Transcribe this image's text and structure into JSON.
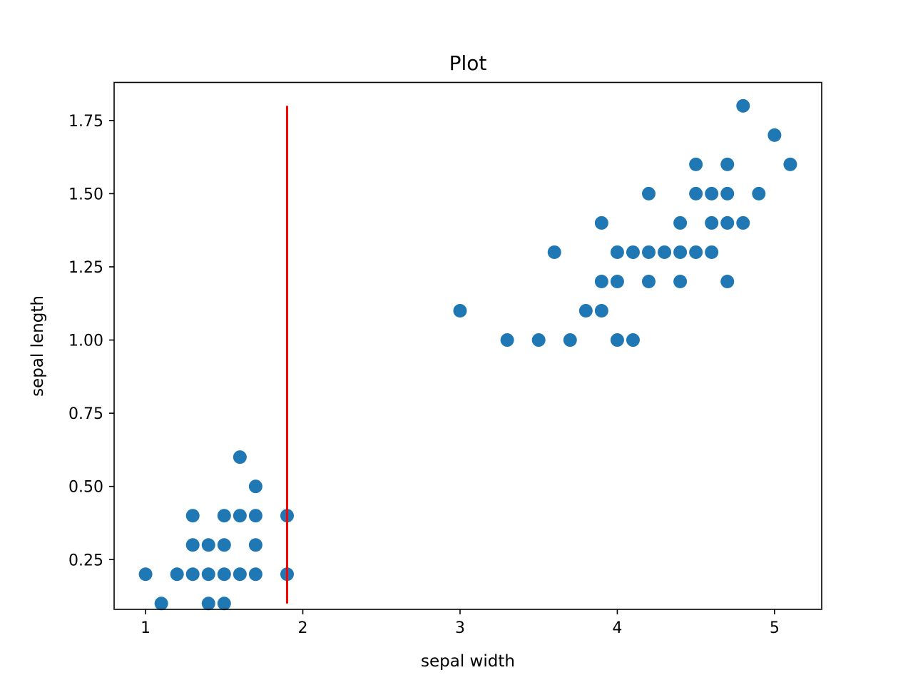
{
  "chart_data": {
    "type": "scatter",
    "title": "Plot",
    "xlabel": "sepal width",
    "ylabel": "sepal length",
    "xlim": [
      0.8,
      5.3
    ],
    "ylim": [
      0.08,
      1.88
    ],
    "xticks": [
      1,
      2,
      3,
      4,
      5
    ],
    "xtick_labels": [
      "1",
      "2",
      "3",
      "4",
      "5"
    ],
    "yticks": [
      0.25,
      0.5,
      0.75,
      1.0,
      1.25,
      1.5,
      1.75
    ],
    "ytick_labels": [
      "0.25",
      "0.50",
      "0.75",
      "1.00",
      "1.25",
      "1.50",
      "1.75"
    ],
    "grid": false,
    "point_color": "#1f77b4",
    "line_color": "#ff0000",
    "vertical_line": {
      "x": 1.9,
      "y_start": 0.1,
      "y_end": 1.8
    },
    "points": [
      [
        1.0,
        0.2
      ],
      [
        1.1,
        0.1
      ],
      [
        1.2,
        0.2
      ],
      [
        1.3,
        0.2
      ],
      [
        1.3,
        0.3
      ],
      [
        1.3,
        0.4
      ],
      [
        1.4,
        0.1
      ],
      [
        1.4,
        0.2
      ],
      [
        1.4,
        0.3
      ],
      [
        1.5,
        0.1
      ],
      [
        1.5,
        0.2
      ],
      [
        1.5,
        0.3
      ],
      [
        1.5,
        0.4
      ],
      [
        1.6,
        0.2
      ],
      [
        1.6,
        0.4
      ],
      [
        1.6,
        0.6
      ],
      [
        1.7,
        0.2
      ],
      [
        1.7,
        0.3
      ],
      [
        1.7,
        0.4
      ],
      [
        1.7,
        0.5
      ],
      [
        1.9,
        0.2
      ],
      [
        1.9,
        0.4
      ],
      [
        3.0,
        1.1
      ],
      [
        3.3,
        1.0
      ],
      [
        3.5,
        1.0
      ],
      [
        3.6,
        1.3
      ],
      [
        3.7,
        1.0
      ],
      [
        3.8,
        1.1
      ],
      [
        3.9,
        1.1
      ],
      [
        3.9,
        1.2
      ],
      [
        3.9,
        1.4
      ],
      [
        4.0,
        1.0
      ],
      [
        4.0,
        1.2
      ],
      [
        4.0,
        1.3
      ],
      [
        4.1,
        1.0
      ],
      [
        4.1,
        1.3
      ],
      [
        4.2,
        1.2
      ],
      [
        4.2,
        1.3
      ],
      [
        4.2,
        1.5
      ],
      [
        4.3,
        1.3
      ],
      [
        4.4,
        1.2
      ],
      [
        4.4,
        1.3
      ],
      [
        4.4,
        1.4
      ],
      [
        4.5,
        1.3
      ],
      [
        4.5,
        1.5
      ],
      [
        4.5,
        1.6
      ],
      [
        4.6,
        1.3
      ],
      [
        4.6,
        1.4
      ],
      [
        4.6,
        1.5
      ],
      [
        4.7,
        1.2
      ],
      [
        4.7,
        1.4
      ],
      [
        4.7,
        1.5
      ],
      [
        4.7,
        1.6
      ],
      [
        4.8,
        1.4
      ],
      [
        4.8,
        1.8
      ],
      [
        4.9,
        1.5
      ],
      [
        5.0,
        1.7
      ],
      [
        5.1,
        1.6
      ]
    ]
  }
}
